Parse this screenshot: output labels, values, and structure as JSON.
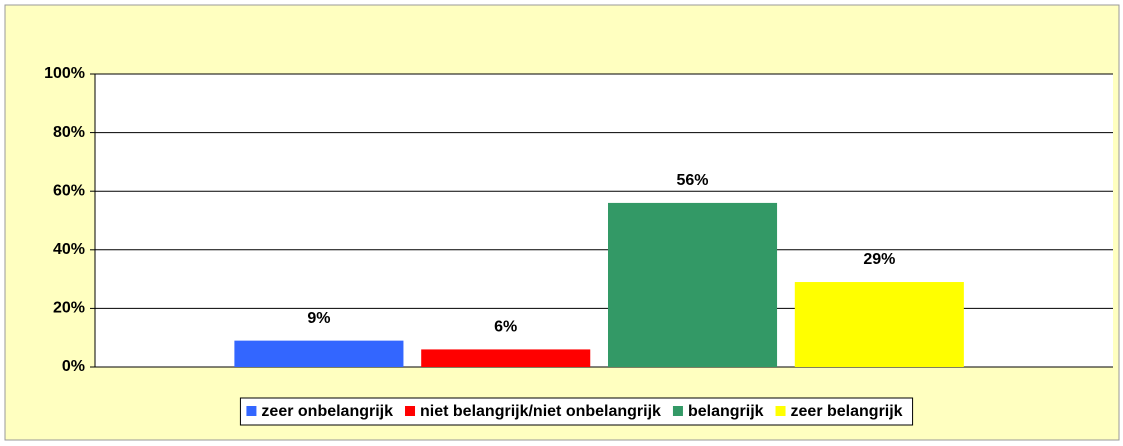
{
  "chart_data": {
    "type": "bar",
    "categories": [
      null
    ],
    "series": [
      {
        "name": "zeer onbelangrijk",
        "color": "#3366ff",
        "values": [
          9
        ],
        "value_labels": [
          "9%"
        ]
      },
      {
        "name": "niet belangrijk/niet onbelangrijk",
        "color": "#ff0000",
        "values": [
          6
        ],
        "value_labels": [
          "6%"
        ]
      },
      {
        "name": "belangrijk",
        "color": "#339966",
        "values": [
          56
        ],
        "value_labels": [
          "56%"
        ]
      },
      {
        "name": "zeer belangrijk",
        "color": "#ffff00",
        "values": [
          29
        ],
        "value_labels": [
          "29%"
        ]
      }
    ],
    "ylim": [
      0,
      100
    ],
    "yticks": [
      {
        "value": 0,
        "label": "0%"
      },
      {
        "value": 20,
        "label": "20%"
      },
      {
        "value": 40,
        "label": "40%"
      },
      {
        "value": 60,
        "label": "60%"
      },
      {
        "value": 80,
        "label": "80%"
      },
      {
        "value": 100,
        "label": "100%"
      }
    ],
    "grid": true,
    "legend": "bottom"
  }
}
